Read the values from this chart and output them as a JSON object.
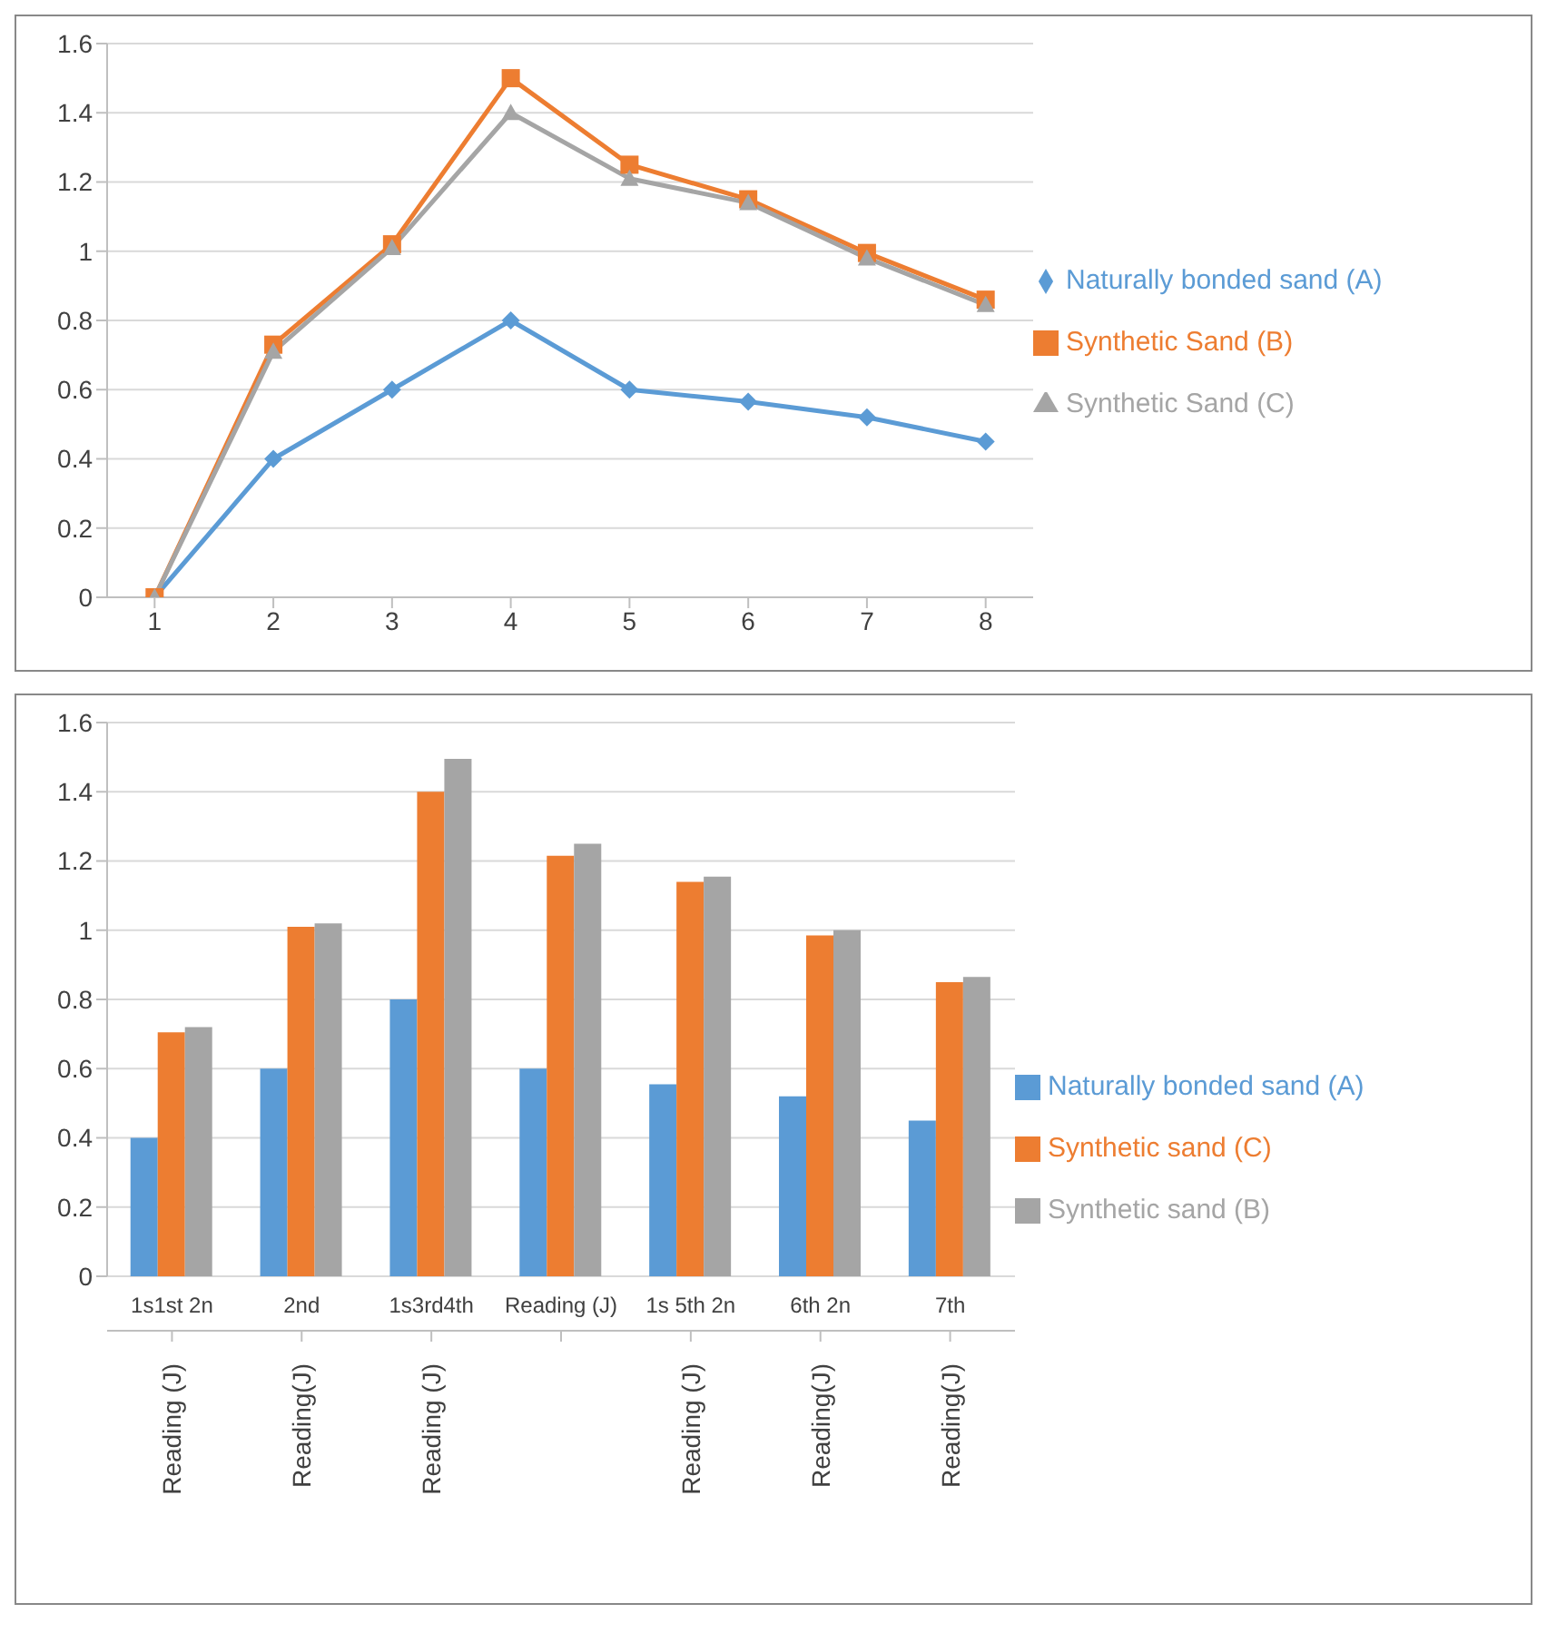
{
  "chart_data": [
    {
      "type": "line",
      "x": [
        1,
        2,
        3,
        4,
        5,
        6,
        7,
        8
      ],
      "xlim": [
        0.6,
        8.4
      ],
      "xticks": [
        1,
        2,
        3,
        4,
        5,
        6,
        7,
        8
      ],
      "ylim": [
        0,
        1.6
      ],
      "yticks": [
        0,
        0.2,
        0.4,
        0.6,
        0.8,
        1,
        1.2,
        1.4,
        1.6
      ],
      "grid": "y",
      "legend": "right",
      "series": [
        {
          "name": "Naturally bonded sand (A)",
          "color": "#5b9bd5",
          "marker": "diamond",
          "values": [
            0,
            0.4,
            0.6,
            0.8,
            0.6,
            0.565,
            0.52,
            0.45
          ]
        },
        {
          "name": "Synthetic Sand (B)",
          "color": "#ed7d31",
          "marker": "square",
          "values": [
            0,
            0.73,
            1.02,
            1.5,
            1.25,
            1.15,
            0.995,
            0.86
          ]
        },
        {
          "name": "Synthetic Sand (C)",
          "color": "#a5a5a5",
          "marker": "triangle",
          "values": [
            0,
            0.71,
            1.01,
            1.4,
            1.21,
            1.14,
            0.98,
            0.845
          ]
        }
      ]
    },
    {
      "type": "bar",
      "categories": [
        "1s1st 2n",
        "2nd",
        "1s3rd4th",
        "Reading (J)",
        "1s 5th 2n",
        "6th 2n",
        "7th"
      ],
      "ylim": [
        0,
        1.6
      ],
      "yticks": [
        0,
        0.2,
        0.4,
        0.6,
        0.8,
        1,
        1.2,
        1.4,
        1.6
      ],
      "grid": "y",
      "legend": "right",
      "annotations": [
        {
          "text": "Reading (J)",
          "x": "1s1st 2n"
        },
        {
          "text": "Reading(J)",
          "x": "2nd"
        },
        {
          "text": "Reading (J)",
          "x": "1s3rd4th"
        },
        {
          "text": "Reading (J)",
          "x": "1s 5th 2n"
        },
        {
          "text": "Reading(J)",
          "x": "6th 2n"
        },
        {
          "text": "Reading(J)",
          "x": "7th"
        }
      ],
      "series": [
        {
          "name": "Naturally bonded sand (A)",
          "color": "#5b9bd5",
          "values": [
            0.4,
            0.6,
            0.8,
            0.6,
            0.555,
            0.52,
            0.45
          ]
        },
        {
          "name": "Synthetic sand (C)",
          "color": "#ed7d31",
          "values": [
            0.705,
            1.01,
            1.4,
            1.215,
            1.14,
            0.985,
            0.85
          ]
        },
        {
          "name": "Synthetic sand (B)",
          "color": "#a5a5a5",
          "values": [
            0.72,
            1.02,
            1.495,
            1.25,
            1.155,
            1.0,
            0.865
          ]
        }
      ]
    }
  ]
}
